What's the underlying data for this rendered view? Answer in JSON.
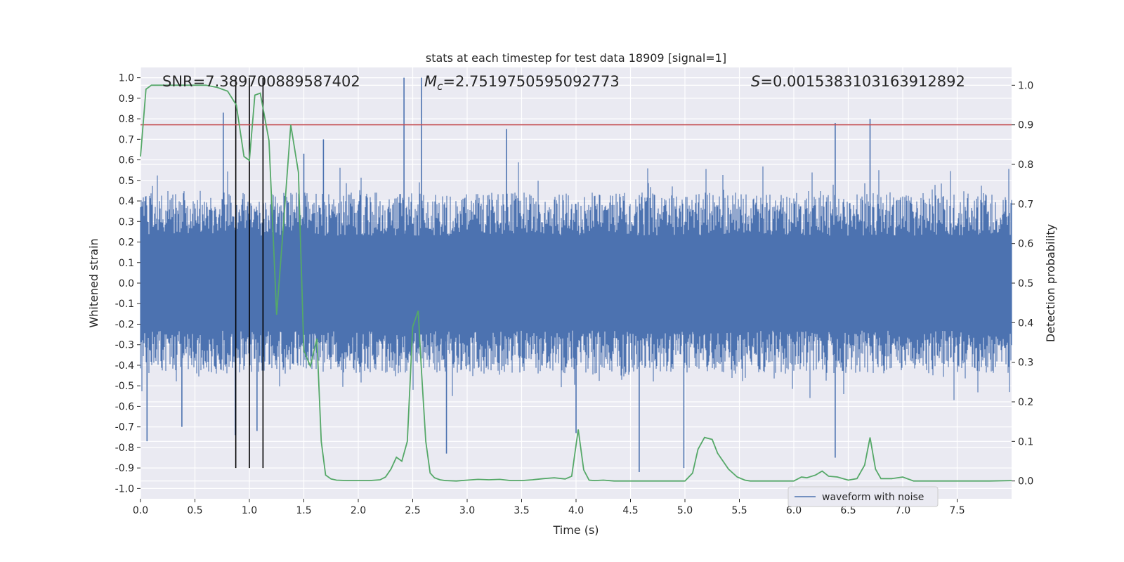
{
  "chart_data": {
    "type": "line",
    "title": "stats at each timestep for test data 18909 [signal=1]",
    "xlabel": "Time (s)",
    "ylabel": "Whitened strain",
    "y2label": "Detection probability",
    "xlim": [
      0.0,
      8.0
    ],
    "ylim": [
      -1.05,
      1.05
    ],
    "y2lim": [
      -0.045,
      1.045
    ],
    "xticks": [
      "0.0",
      "0.5",
      "1.0",
      "1.5",
      "2.0",
      "2.5",
      "3.0",
      "3.5",
      "4.0",
      "4.5",
      "5.0",
      "5.5",
      "6.0",
      "6.5",
      "7.0",
      "7.5"
    ],
    "yticks": [
      "-1.0",
      "-0.9",
      "-0.8",
      "-0.7",
      "-0.6",
      "-0.5",
      "-0.4",
      "-0.3",
      "-0.2",
      "-0.1",
      "0.0",
      "0.1",
      "0.2",
      "0.3",
      "0.4",
      "0.5",
      "0.6",
      "0.7",
      "0.8",
      "0.9",
      "1.0"
    ],
    "y2ticks": [
      "0.0",
      "0.1",
      "0.2",
      "0.3",
      "0.4",
      "0.5",
      "0.6",
      "0.7",
      "0.8",
      "0.9",
      "1.0"
    ],
    "grid": true,
    "legend_position": "lower-right",
    "colors": {
      "background": "#eaeaf2",
      "grid": "#ffffff",
      "waveform": "#4c72b0",
      "probability": "#55a868",
      "threshold": "#c44e52",
      "markers": "#000000"
    },
    "annotations": {
      "snr_text": "SNR=7.389700889587402",
      "mc_symbol": "M",
      "mc_subscript": "c",
      "mc_value": "=2.7519750595092773",
      "s_symbol": "S",
      "s_value": "=0.0015383103163912892"
    },
    "series": [
      {
        "name": "waveform with noise",
        "axis": "left",
        "envelope": {
          "upper_typical": 0.42,
          "lower_typical": -0.42,
          "spikes": [
            {
              "x": 0.06,
              "y": -0.77
            },
            {
              "x": 0.38,
              "y": -0.7
            },
            {
              "x": 0.76,
              "y": 0.83
            },
            {
              "x": 0.87,
              "y": -0.74
            },
            {
              "x": 1.07,
              "y": -0.72
            },
            {
              "x": 1.5,
              "y": 0.63
            },
            {
              "x": 1.68,
              "y": 0.7
            },
            {
              "x": 2.42,
              "y": 1.0
            },
            {
              "x": 2.58,
              "y": 1.0
            },
            {
              "x": 2.81,
              "y": -0.83
            },
            {
              "x": 3.36,
              "y": 0.75
            },
            {
              "x": 4.0,
              "y": -0.73
            },
            {
              "x": 4.58,
              "y": -0.92
            },
            {
              "x": 4.99,
              "y": -0.9
            },
            {
              "x": 6.38,
              "y": 0.78
            },
            {
              "x": 6.38,
              "y": -0.85
            },
            {
              "x": 6.7,
              "y": 0.8
            }
          ]
        }
      },
      {
        "name": "detection probability",
        "axis": "right",
        "x": [
          0.0,
          0.05,
          0.1,
          0.2,
          0.3,
          0.4,
          0.5,
          0.6,
          0.7,
          0.8,
          0.88,
          0.95,
          1.0,
          1.05,
          1.1,
          1.18,
          1.25,
          1.3,
          1.38,
          1.45,
          1.5,
          1.56,
          1.62,
          1.66,
          1.7,
          1.75,
          1.8,
          1.9,
          2.0,
          2.1,
          2.2,
          2.25,
          2.3,
          2.35,
          2.4,
          2.45,
          2.5,
          2.55,
          2.58,
          2.62,
          2.66,
          2.7,
          2.75,
          2.8,
          2.9,
          3.0,
          3.1,
          3.2,
          3.3,
          3.4,
          3.5,
          3.6,
          3.7,
          3.8,
          3.9,
          3.96,
          4.02,
          4.07,
          4.12,
          4.17,
          4.25,
          4.35,
          4.45,
          4.55,
          4.7,
          4.85,
          5.0,
          5.07,
          5.12,
          5.18,
          5.25,
          5.3,
          5.4,
          5.48,
          5.55,
          5.6,
          5.7,
          5.8,
          5.9,
          6.0,
          6.07,
          6.12,
          6.2,
          6.26,
          6.32,
          6.4,
          6.5,
          6.58,
          6.65,
          6.7,
          6.75,
          6.8,
          6.9,
          7.0,
          7.1,
          7.2,
          7.4,
          7.6,
          7.8,
          8.0
        ],
        "values": [
          0.82,
          0.99,
          1.0,
          1.0,
          1.0,
          1.0,
          1.0,
          1.0,
          0.995,
          0.985,
          0.95,
          0.82,
          0.81,
          0.975,
          0.98,
          0.86,
          0.42,
          0.6,
          0.9,
          0.78,
          0.33,
          0.29,
          0.36,
          0.1,
          0.015,
          0.005,
          0.002,
          0.001,
          0.001,
          0.001,
          0.003,
          0.01,
          0.03,
          0.06,
          0.05,
          0.1,
          0.39,
          0.43,
          0.28,
          0.1,
          0.02,
          0.008,
          0.003,
          0.001,
          0.0,
          0.002,
          0.004,
          0.003,
          0.004,
          0.001,
          0.001,
          0.003,
          0.006,
          0.008,
          0.005,
          0.012,
          0.13,
          0.028,
          0.002,
          0.001,
          0.002,
          0.0,
          0.0,
          0.0,
          0.0,
          0.0,
          0.0,
          0.02,
          0.08,
          0.11,
          0.105,
          0.07,
          0.03,
          0.01,
          0.002,
          0.0,
          0.0,
          0.0,
          0.0,
          0.0,
          0.01,
          0.008,
          0.015,
          0.025,
          0.012,
          0.01,
          0.002,
          0.006,
          0.04,
          0.11,
          0.03,
          0.006,
          0.006,
          0.01,
          0.0,
          0.0,
          0.0,
          0.0,
          0.0,
          0.001
        ]
      },
      {
        "name": "threshold",
        "axis": "right",
        "value": 0.9
      },
      {
        "name": "event markers",
        "axis": "left",
        "x": [
          0.875,
          1.0,
          1.125
        ],
        "y_range": [
          -0.9,
          1.0
        ]
      }
    ]
  }
}
